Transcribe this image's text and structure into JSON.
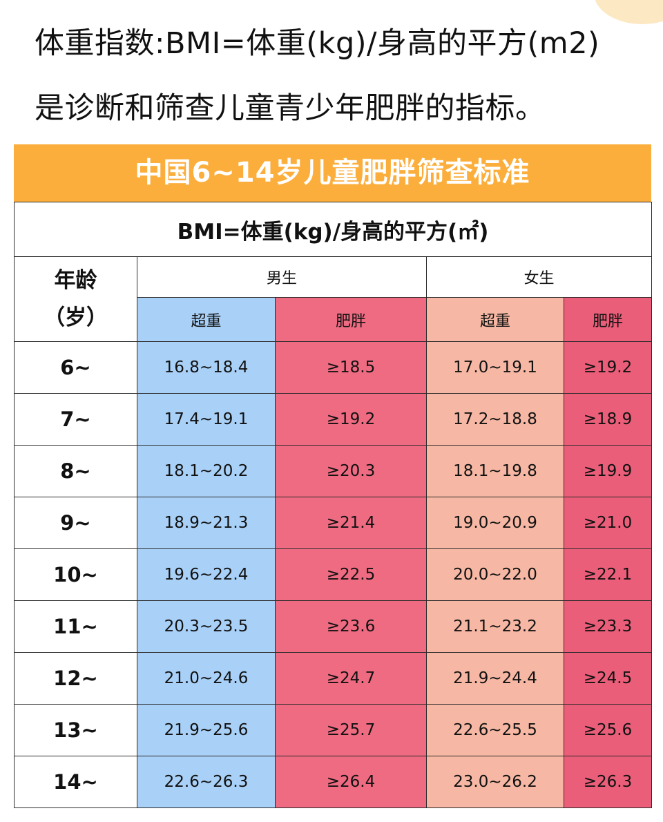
{
  "intro": {
    "line1": "体重指数:BMI=体重(kg)/身高的平方(m2)",
    "line2": "是诊断和筛查儿童青少年肥胖的指标。"
  },
  "table": {
    "banner": "中国6~14岁儿童肥胖筛查标准",
    "formula": "BMI=体重(kg)/身高的平方(㎡)",
    "age_header_line1": "年龄",
    "age_header_line2": "（岁）",
    "boys_label": "男生",
    "girls_label": "女生",
    "overweight_label": "超重",
    "obese_label": "肥胖",
    "rows": [
      {
        "age": "6~",
        "boy_over": "16.8~18.4",
        "boy_obese": "≥18.5",
        "girl_over": "17.0~19.1",
        "girl_obese": "≥19.2"
      },
      {
        "age": "7~",
        "boy_over": "17.4~19.1",
        "boy_obese": "≥19.2",
        "girl_over": "17.2~18.8",
        "girl_obese": "≥18.9"
      },
      {
        "age": "8~",
        "boy_over": "18.1~20.2",
        "boy_obese": "≥20.3",
        "girl_over": "18.1~19.8",
        "girl_obese": "≥19.9"
      },
      {
        "age": "9~",
        "boy_over": "18.9~21.3",
        "boy_obese": "≥21.4",
        "girl_over": "19.0~20.9",
        "girl_obese": "≥21.0"
      },
      {
        "age": "10~",
        "boy_over": "19.6~22.4",
        "boy_obese": "≥22.5",
        "girl_over": "20.0~22.0",
        "girl_obese": "≥22.1"
      },
      {
        "age": "11~",
        "boy_over": "20.3~23.5",
        "boy_obese": "≥23.6",
        "girl_over": "21.1~23.2",
        "girl_obese": "≥23.3"
      },
      {
        "age": "12~",
        "boy_over": "21.0~24.6",
        "boy_obese": "≥24.7",
        "girl_over": "21.9~24.4",
        "girl_obese": "≥24.5"
      },
      {
        "age": "13~",
        "boy_over": "21.9~25.6",
        "boy_obese": "≥25.7",
        "girl_over": "22.6~25.5",
        "girl_obese": "≥25.6"
      },
      {
        "age": "14~",
        "boy_over": "22.6~26.3",
        "boy_obese": "≥26.4",
        "girl_over": "23.0~26.2",
        "girl_obese": "≥26.3"
      }
    ]
  },
  "colors": {
    "banner": "#fbae3c",
    "boy_overweight": "#a9d0f7",
    "boy_obese": "#ee6b82",
    "girl_overweight": "#f6b8a4",
    "girl_obese": "#ea5e79"
  }
}
